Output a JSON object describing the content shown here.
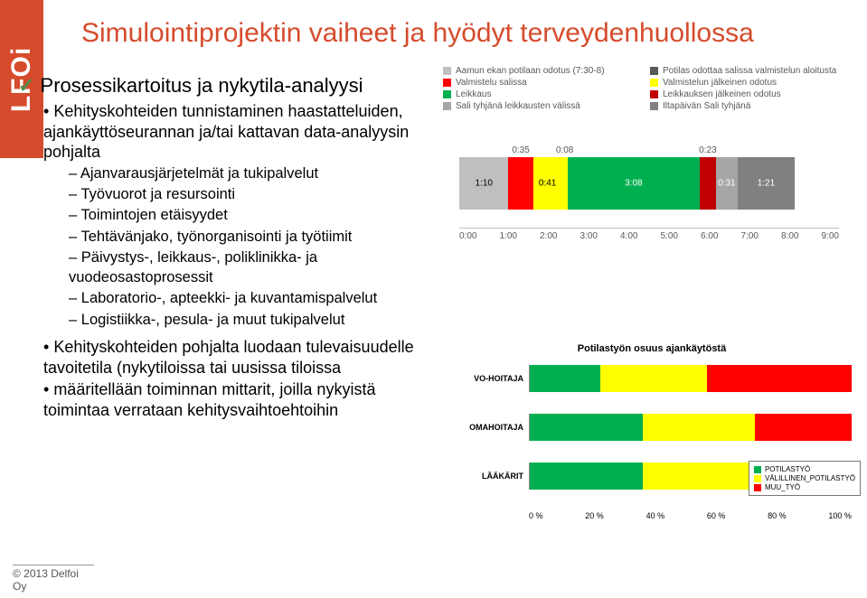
{
  "logo": "LFOi",
  "title": "Simulointiprojektin vaiheet ja hyödyt terveydenhuollossa",
  "bullets": {
    "top": "Prosessikartoitus ja nykytila-analyysi",
    "sub1": "Kehityskohteiden tunnistaminen haastatteluiden, ajankäyttöseurannan ja/tai kattavan data-analyysin pohjalta",
    "sub_items": [
      "Ajanvarausjärjetelmät ja tukipalvelut",
      "Työvuorot ja resursointi",
      "Toimintojen etäisyydet",
      "Tehtävänjako, työnorganisointi ja työtiimit",
      "Päivystys-, leikkaus-, poliklinikka- ja vuodeosastoprosessit",
      "Laboratorio-, apteekki- ja kuvantamispalvelut",
      "Logistiikka-, pesula- ja muut tukipalvelut"
    ],
    "sub2": "Kehityskohteiden pohjalta luodaan tulevaisuudelle tavoitetila (nykytiloissa tai uusissa tiloissa",
    "sub3": "määritellään toiminnan mittarit, joilla nykyistä toimintaa verrataan kehitysvaihtoehtoihin"
  },
  "timeline": {
    "legend": [
      {
        "label": "Aamun ekan potilaan odotus (7:30-8)",
        "color": "#bfbfbf"
      },
      {
        "label": "Potilas odottaa salissa valmistelun aloitusta",
        "color": "#595959"
      },
      {
        "label": "Valmistelu salissa",
        "color": "#ff0000"
      },
      {
        "label": "Valmistelun jälkeinen odotus",
        "color": "#ffff00"
      },
      {
        "label": "Leikkaus",
        "color": "#00b050"
      },
      {
        "label": "Leikkauksen jälkeinen odotus",
        "color": "#c00000"
      },
      {
        "label": "Sali tyhjänä leikkausten välissä",
        "color": "#a6a6a6"
      },
      {
        "label": "Iltapäivän Sali tyhjänä",
        "color": "#808080"
      }
    ],
    "segments": [
      {
        "color": "#bfbfbf",
        "label": "1:10",
        "dur": 70,
        "pos": "mid"
      },
      {
        "color": "#ff0000",
        "label": "0:35",
        "dur": 35,
        "pos": "above"
      },
      {
        "color": "#ffff00",
        "label": "0:41",
        "dur": 41,
        "pos": "mid"
      },
      {
        "color": "#ffff00",
        "label": "0:08",
        "dur": 8,
        "pos": "above"
      },
      {
        "color": "#00b050",
        "label": "3:08",
        "dur": 188,
        "pos": "mid"
      },
      {
        "color": "#c00000",
        "label": "0:23",
        "dur": 23,
        "pos": "above"
      },
      {
        "color": "#a6a6a6",
        "label": "0:31",
        "dur": 31,
        "pos": "mid"
      },
      {
        "color": "#808080",
        "label": "1:21",
        "dur": 81,
        "pos": "mid"
      }
    ],
    "axis": [
      "0:00",
      "1:00",
      "2:00",
      "3:00",
      "4:00",
      "5:00",
      "6:00",
      "7:00",
      "8:00",
      "9:00"
    ],
    "total_minutes": 540
  },
  "share": {
    "title": "Potilastyön osuus ajankäytöstä",
    "rows": [
      {
        "label": "VO-HOITAJA",
        "segments": [
          {
            "c": "#00b050",
            "v": 22
          },
          {
            "c": "#ffff00",
            "v": 33
          },
          {
            "c": "#ff0000",
            "v": 45
          }
        ]
      },
      {
        "label": "OMAHOITAJA",
        "segments": [
          {
            "c": "#00b050",
            "v": 35
          },
          {
            "c": "#ffff00",
            "v": 35
          },
          {
            "c": "#ff0000",
            "v": 30
          }
        ]
      },
      {
        "label": "LÄÄKÄRIT",
        "segments": [
          {
            "c": "#00b050",
            "v": 35
          },
          {
            "c": "#ffff00",
            "v": 40
          },
          {
            "c": "#ff0000",
            "v": 25
          }
        ]
      }
    ],
    "axis": [
      "0 %",
      "20 %",
      "40 %",
      "60 %",
      "80 %",
      "100 %"
    ],
    "legend": [
      {
        "label": "POTILASTYÖ",
        "color": "#00b050"
      },
      {
        "label": "VÄLILLINEN_POTILASTYÖ",
        "color": "#ffff00"
      },
      {
        "label": "MUU_TYÖ",
        "color": "#ff0000"
      }
    ]
  },
  "footer": "© 2013 Delfoi Oy"
}
